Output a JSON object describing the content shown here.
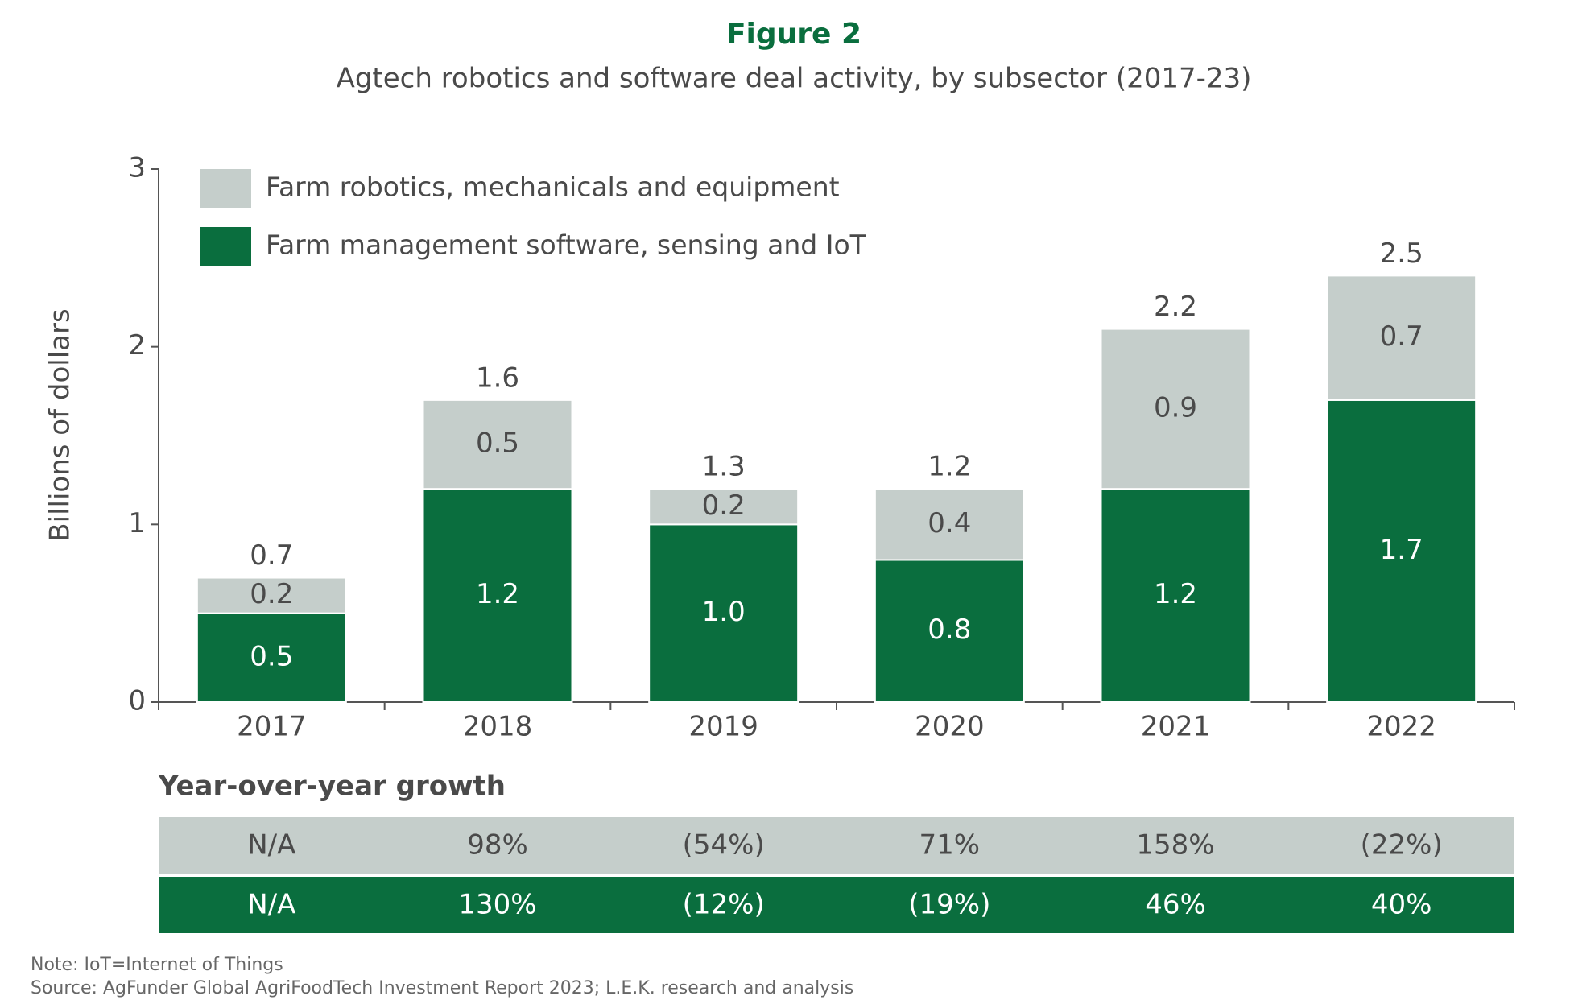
{
  "header": {
    "figure": "Figure 2",
    "subtitle": "Agtech robotics and software deal activity, by subsector (2017-23)"
  },
  "chart_data": {
    "type": "stacked_bar",
    "y_label": "Billions of dollars",
    "categories": [
      "2017",
      "2018",
      "2019",
      "2020",
      "2021",
      "2022"
    ],
    "series": [
      {
        "name": "Farm management software, sensing and IoT",
        "color": "#0a6e3e",
        "values": [
          0.5,
          1.2,
          1.0,
          0.8,
          1.2,
          1.7
        ],
        "value_labels": [
          "0.5",
          "1.2",
          "1.0",
          "0.8",
          "1.2",
          "1.7"
        ]
      },
      {
        "name": "Farm robotics, mechanicals and equipment",
        "color": "#c5cecb",
        "values": [
          0.2,
          0.5,
          0.2,
          0.4,
          0.9,
          0.7
        ],
        "value_labels": [
          "0.2",
          "0.5",
          "0.2",
          "0.4",
          "0.9",
          "0.7"
        ]
      }
    ],
    "totals": [
      0.7,
      1.6,
      1.3,
      1.2,
      2.2,
      2.5
    ],
    "ylim": [
      0,
      3
    ],
    "yticks": [
      0,
      1,
      2,
      3
    ]
  },
  "growth": {
    "title": "Year-over-year growth",
    "rows": [
      [
        "N/A",
        "98%",
        "(54%)",
        "71%",
        "158%",
        "(22%)"
      ],
      [
        "N/A",
        "130%",
        "(12%)",
        "(19%)",
        "46%",
        "40%"
      ]
    ]
  },
  "footer": {
    "note": "Note: IoT=Internet of Things",
    "source": "Source: AgFunder Global AgriFoodTech Investment Report 2023; L.E.K. research and analysis"
  }
}
